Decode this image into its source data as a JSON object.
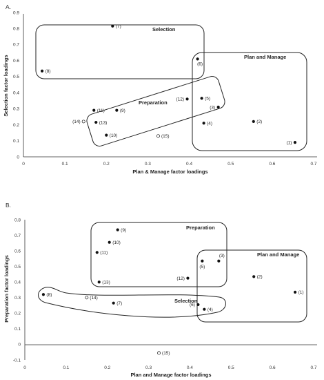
{
  "chart_data": [
    {
      "type": "scatter",
      "panel_label": "A.",
      "xlabel": "Plan & Manage factor loadings",
      "ylabel": "Selection factor loadings",
      "xlim": [
        0,
        0.7
      ],
      "ylim": [
        0,
        0.9
      ],
      "xticks": [
        "0",
        "0.1",
        "0.2",
        "0.3",
        "0.4",
        "0.5",
        "0.6",
        "0.7"
      ],
      "yticks": [
        "0",
        "0.1",
        "0.2",
        "0.3",
        "0.4",
        "0.5",
        "0.6",
        "0.7",
        "0.8",
        "0.9"
      ],
      "grid": false,
      "points": [
        {
          "label": "(1)",
          "x": 0.655,
          "y": 0.09,
          "filled": true
        },
        {
          "label": "(2)",
          "x": 0.555,
          "y": 0.22,
          "filled": true
        },
        {
          "label": "(3)",
          "x": 0.47,
          "y": 0.31,
          "filled": true
        },
        {
          "label": "(4)",
          "x": 0.435,
          "y": 0.21,
          "filled": true
        },
        {
          "label": "(5)",
          "x": 0.43,
          "y": 0.365,
          "filled": true
        },
        {
          "label": "(6)",
          "x": 0.42,
          "y": 0.61,
          "filled": true
        },
        {
          "label": "(7)",
          "x": 0.215,
          "y": 0.815,
          "filled": true
        },
        {
          "label": "(8)",
          "x": 0.045,
          "y": 0.535,
          "filled": true
        },
        {
          "label": "(9)",
          "x": 0.225,
          "y": 0.29,
          "filled": true
        },
        {
          "label": "(10)",
          "x": 0.2,
          "y": 0.135,
          "filled": true
        },
        {
          "label": "(11)",
          "x": 0.17,
          "y": 0.29,
          "filled": true
        },
        {
          "label": "(12)",
          "x": 0.395,
          "y": 0.36,
          "filled": true
        },
        {
          "label": "(13)",
          "x": 0.175,
          "y": 0.215,
          "filled": true
        },
        {
          "label": "(14)",
          "x": 0.145,
          "y": 0.22,
          "filled": false
        },
        {
          "label": "(15)",
          "x": 0.325,
          "y": 0.13,
          "filled": false
        }
      ],
      "groups": [
        "Selection",
        "Plan and Manage",
        "Preparation"
      ]
    },
    {
      "type": "scatter",
      "panel_label": "B.",
      "xlabel": "Plan and Manage factor loadings",
      "ylabel": "Preparation factor loadings",
      "xlim": [
        0,
        0.7
      ],
      "ylim": [
        -0.1,
        0.8
      ],
      "xticks": [
        "0",
        "0.1",
        "0.2",
        "0.3",
        "0.4",
        "0.5",
        "0.6",
        "0.7"
      ],
      "yticks": [
        "-0.1",
        "0",
        "0.1",
        "0.2",
        "0.3",
        "0.4",
        "0.5",
        "0.6",
        "0.7",
        "0.8"
      ],
      "grid": false,
      "points": [
        {
          "label": "(1)",
          "x": 0.655,
          "y": 0.335,
          "filled": true
        },
        {
          "label": "(2)",
          "x": 0.555,
          "y": 0.435,
          "filled": true
        },
        {
          "label": "(3)",
          "x": 0.47,
          "y": 0.535,
          "filled": true
        },
        {
          "label": "(4)",
          "x": 0.435,
          "y": 0.225,
          "filled": true
        },
        {
          "label": "(5)",
          "x": 0.43,
          "y": 0.535,
          "filled": true
        },
        {
          "label": "(6)",
          "x": 0.42,
          "y": 0.255,
          "filled": true
        },
        {
          "label": "(7)",
          "x": 0.215,
          "y": 0.265,
          "filled": true
        },
        {
          "label": "(8)",
          "x": 0.045,
          "y": 0.32,
          "filled": true
        },
        {
          "label": "(9)",
          "x": 0.225,
          "y": 0.735,
          "filled": true
        },
        {
          "label": "(10)",
          "x": 0.205,
          "y": 0.655,
          "filled": true
        },
        {
          "label": "(11)",
          "x": 0.175,
          "y": 0.59,
          "filled": true
        },
        {
          "label": "(12)",
          "x": 0.395,
          "y": 0.425,
          "filled": true
        },
        {
          "label": "(13)",
          "x": 0.18,
          "y": 0.4,
          "filled": true
        },
        {
          "label": "(14)",
          "x": 0.15,
          "y": 0.3,
          "filled": false
        },
        {
          "label": "(15)",
          "x": 0.325,
          "y": -0.055,
          "filled": false
        }
      ],
      "groups": [
        "Preparation",
        "Plan and Manage",
        "Selection"
      ]
    }
  ]
}
